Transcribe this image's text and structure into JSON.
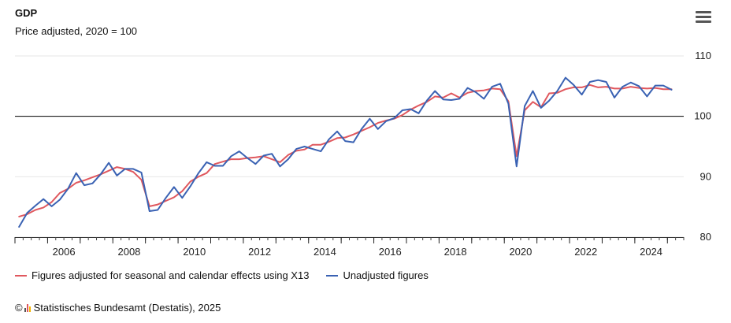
{
  "header": {
    "title": "GDP",
    "subtitle": "Price adjusted, 2020 = 100",
    "menu_icon": "hamburger-menu-icon"
  },
  "colors": {
    "seasonal": "#e0585e",
    "unadjusted": "#3a62b3",
    "reference_line": "#000000",
    "grid": "#e6e6e6"
  },
  "credits": {
    "prefix": "©",
    "text": "Statistisches Bundesamt (Destatis), 2025",
    "logo_icon": "destatis-logo-icon",
    "logo_colors": [
      "#555555",
      "#e0585e",
      "#f2b400"
    ]
  },
  "chart_data": {
    "type": "line",
    "title": "GDP",
    "subtitle": "Price adjusted, 2020 = 100",
    "xlabel": "",
    "ylabel": "",
    "ylim": [
      80,
      110
    ],
    "xlim": [
      2005.0,
      2025.5
    ],
    "y_ticks": [
      80,
      90,
      100,
      110
    ],
    "x_ticks": [
      "2006",
      "2008",
      "2010",
      "2012",
      "2014",
      "2016",
      "2018",
      "2020",
      "2022",
      "2024"
    ],
    "reference_line": 100,
    "grid": "horizontal",
    "y_axis_position": "right",
    "legend_position": "bottom-left",
    "series": [
      {
        "name": "Figures adjusted for seasonal and calendar effects using X13",
        "color": "#e0585e",
        "x": [
          2005.125,
          2005.375,
          2005.625,
          2005.875,
          2006.125,
          2006.375,
          2006.625,
          2006.875,
          2007.125,
          2007.375,
          2007.625,
          2007.875,
          2008.125,
          2008.375,
          2008.625,
          2008.875,
          2009.125,
          2009.375,
          2009.625,
          2009.875,
          2010.125,
          2010.375,
          2010.625,
          2010.875,
          2011.125,
          2011.375,
          2011.625,
          2011.875,
          2012.125,
          2012.375,
          2012.625,
          2012.875,
          2013.125,
          2013.375,
          2013.625,
          2013.875,
          2014.125,
          2014.375,
          2014.625,
          2014.875,
          2015.125,
          2015.375,
          2015.625,
          2015.875,
          2016.125,
          2016.375,
          2016.625,
          2016.875,
          2017.125,
          2017.375,
          2017.625,
          2017.875,
          2018.125,
          2018.375,
          2018.625,
          2018.875,
          2019.125,
          2019.375,
          2019.625,
          2019.875,
          2020.125,
          2020.375,
          2020.625,
          2020.875,
          2021.125,
          2021.375,
          2021.625,
          2021.875,
          2022.125,
          2022.375,
          2022.625,
          2022.875,
          2023.125,
          2023.375,
          2023.625,
          2023.875,
          2024.125,
          2024.375,
          2024.625,
          2024.875,
          2025.125
        ],
        "values": [
          83.4,
          83.8,
          84.5,
          84.9,
          85.8,
          87.3,
          88.0,
          89.0,
          89.4,
          89.9,
          90.4,
          91.0,
          91.6,
          91.3,
          90.8,
          89.5,
          85.1,
          85.4,
          86.0,
          86.6,
          87.6,
          89.2,
          90.0,
          90.6,
          92.1,
          92.5,
          92.9,
          92.9,
          93.1,
          93.2,
          93.4,
          92.9,
          92.4,
          93.6,
          94.3,
          94.5,
          95.3,
          95.3,
          95.8,
          96.4,
          96.5,
          97.0,
          97.6,
          98.2,
          98.9,
          99.3,
          99.6,
          100.2,
          101.1,
          101.8,
          102.4,
          103.3,
          103.1,
          103.8,
          103.1,
          103.9,
          104.2,
          104.3,
          104.6,
          104.5,
          102.5,
          93.4,
          101.0,
          102.4,
          101.5,
          103.8,
          103.9,
          104.5,
          104.8,
          104.8,
          105.2,
          104.8,
          104.9,
          104.6,
          104.6,
          104.9,
          104.7,
          104.6,
          104.7,
          104.5,
          104.5
        ]
      },
      {
        "name": "Unadjusted figures",
        "color": "#3a62b3",
        "x": [
          2005.125,
          2005.375,
          2005.625,
          2005.875,
          2006.125,
          2006.375,
          2006.625,
          2006.875,
          2007.125,
          2007.375,
          2007.625,
          2007.875,
          2008.125,
          2008.375,
          2008.625,
          2008.875,
          2009.125,
          2009.375,
          2009.625,
          2009.875,
          2010.125,
          2010.375,
          2010.625,
          2010.875,
          2011.125,
          2011.375,
          2011.625,
          2011.875,
          2012.125,
          2012.375,
          2012.625,
          2012.875,
          2013.125,
          2013.375,
          2013.625,
          2013.875,
          2014.125,
          2014.375,
          2014.625,
          2014.875,
          2015.125,
          2015.375,
          2015.625,
          2015.875,
          2016.125,
          2016.375,
          2016.625,
          2016.875,
          2017.125,
          2017.375,
          2017.625,
          2017.875,
          2018.125,
          2018.375,
          2018.625,
          2018.875,
          2019.125,
          2019.375,
          2019.625,
          2019.875,
          2020.125,
          2020.375,
          2020.625,
          2020.875,
          2021.125,
          2021.375,
          2021.625,
          2021.875,
          2022.125,
          2022.375,
          2022.625,
          2022.875,
          2023.125,
          2023.375,
          2023.625,
          2023.875,
          2024.125,
          2024.375,
          2024.625,
          2024.875,
          2025.125
        ],
        "values": [
          81.7,
          84.0,
          85.2,
          86.3,
          85.1,
          86.2,
          88.0,
          90.6,
          88.6,
          88.9,
          90.4,
          92.3,
          90.2,
          91.3,
          91.3,
          90.7,
          84.3,
          84.5,
          86.5,
          88.3,
          86.5,
          88.4,
          90.6,
          92.4,
          91.8,
          91.8,
          93.4,
          94.2,
          93.1,
          92.1,
          93.5,
          93.8,
          91.7,
          92.9,
          94.6,
          95.0,
          94.6,
          94.2,
          96.2,
          97.5,
          95.9,
          95.7,
          97.9,
          99.6,
          97.9,
          99.2,
          99.7,
          101.0,
          101.2,
          100.5,
          102.6,
          104.2,
          102.8,
          102.7,
          102.9,
          104.7,
          104.0,
          102.9,
          104.9,
          105.4,
          102.1,
          91.7,
          101.7,
          104.2,
          101.4,
          102.6,
          104.2,
          106.4,
          105.2,
          103.6,
          105.7,
          106.0,
          105.7,
          103.1,
          104.9,
          105.6,
          105.0,
          103.3,
          105.1,
          105.1,
          104.4
        ]
      }
    ]
  }
}
